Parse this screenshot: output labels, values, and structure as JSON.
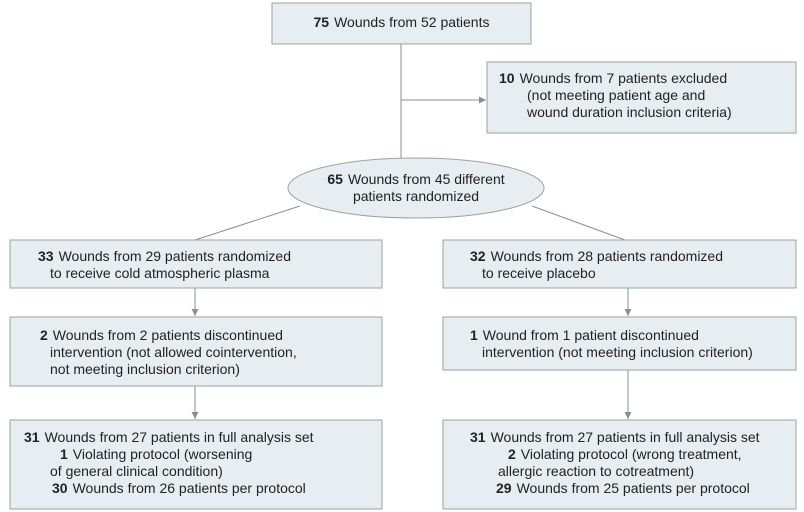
{
  "nodes": [
    {
      "lines": [
        {
          "num": "75",
          "text": "Wounds from 52 patients"
        }
      ]
    },
    {
      "lines": [
        {
          "num": "10",
          "text": "Wounds from 7 patients excluded"
        },
        {
          "text": "(not meeting patient age and"
        },
        {
          "text": "wound duration inclusion criteria)"
        }
      ]
    },
    {
      "lines": [
        {
          "num": "65",
          "text": "Wounds from 45 different"
        },
        {
          "text": "patients randomized"
        }
      ]
    },
    {
      "lines": [
        {
          "num": "33",
          "text": "Wounds from 29 patients randomized"
        },
        {
          "text": "to receive cold atmospheric plasma"
        }
      ]
    },
    {
      "lines": [
        {
          "num": "32",
          "text": "Wounds from 28 patients randomized"
        },
        {
          "text": "to receive placebo"
        }
      ]
    },
    {
      "lines": [
        {
          "num": "2",
          "text": "Wounds from 2 patients discontinued"
        },
        {
          "text": "intervention (not allowed cointervention,"
        },
        {
          "text": "not meeting inclusion criterion)"
        }
      ]
    },
    {
      "lines": [
        {
          "num": "1",
          "text": "Wound from 1 patient discontinued"
        },
        {
          "text": "intervention (not meeting inclusion criterion)"
        }
      ]
    },
    {
      "lines": [
        {
          "num": "31",
          "text": "Wounds from 27 patients in full analysis set"
        },
        {
          "num": "1",
          "text": "Violating protocol (worsening"
        },
        {
          "text": "of general clinical condition)"
        },
        {
          "num": "30",
          "text": "Wounds from 26 patients per protocol"
        }
      ]
    },
    {
      "lines": [
        {
          "num": "31",
          "text": "Wounds from 27 patients in full analysis set"
        },
        {
          "num": "2",
          "text": "Violating protocol (wrong treatment,"
        },
        {
          "text": "allergic reaction to cotreatment)"
        },
        {
          "num": "29",
          "text": "Wounds from 25 patients per protocol"
        }
      ]
    }
  ]
}
